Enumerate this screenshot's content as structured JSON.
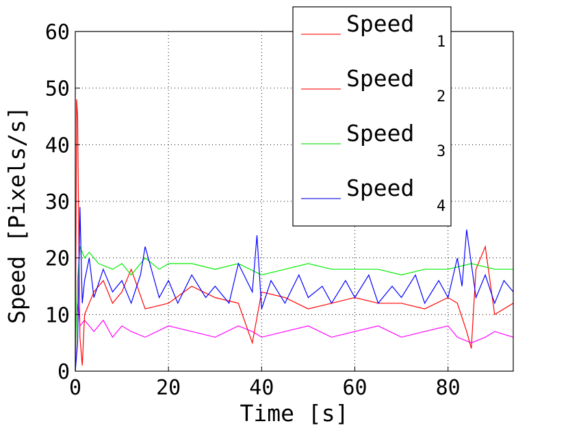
{
  "chart_data": {
    "type": "line",
    "title": "",
    "xlabel": "Time [s]",
    "ylabel": "Speed [Pixels/s]",
    "xlim": [
      0,
      94
    ],
    "ylim": [
      0,
      60
    ],
    "xticks": [
      0,
      20,
      40,
      60,
      80
    ],
    "yticks": [
      0,
      10,
      20,
      30,
      40,
      50,
      60
    ],
    "grid": true,
    "legend_position": "top-right",
    "series": [
      {
        "name": "Speed",
        "subscript": "1",
        "legend_color": "#ff2020",
        "color": "#ff00ff",
        "x": [
          0,
          0.3,
          0.6,
          1,
          2,
          4,
          6,
          8,
          10,
          12,
          15,
          20,
          25,
          30,
          35,
          38,
          40,
          45,
          50,
          55,
          60,
          65,
          70,
          75,
          80,
          82,
          85,
          88,
          90,
          94
        ],
        "y": [
          0,
          10,
          12,
          8,
          9,
          7,
          9,
          6,
          8,
          7,
          6,
          8,
          7,
          6,
          8,
          7,
          6,
          7,
          8,
          6,
          7,
          8,
          6,
          7,
          8,
          6,
          5,
          6,
          7,
          6
        ]
      },
      {
        "name": "Speed",
        "subscript": "2",
        "legend_color": "#ff2020",
        "color": "#ff0000",
        "x": [
          0,
          0.3,
          0.5,
          0.8,
          1,
          1.5,
          2,
          4,
          6,
          8,
          10,
          12,
          15,
          20,
          25,
          30,
          35,
          38,
          40,
          45,
          50,
          55,
          60,
          65,
          70,
          75,
          80,
          82,
          84,
          85,
          86,
          88,
          90,
          94
        ],
        "y": [
          0,
          48,
          45,
          20,
          6,
          1,
          10,
          14,
          16,
          12,
          14,
          18,
          11,
          12,
          15,
          13,
          12,
          5,
          14,
          13,
          11,
          12,
          13,
          12,
          12,
          11,
          13,
          12,
          7,
          4,
          18,
          22,
          10,
          12
        ]
      },
      {
        "name": "Speed",
        "subscript": "3",
        "legend_color": "#20e020",
        "color": "#00ee00",
        "x": [
          0,
          0.5,
          1,
          2,
          3,
          5,
          8,
          10,
          12,
          15,
          18,
          20,
          25,
          30,
          35,
          40,
          45,
          50,
          55,
          60,
          65,
          70,
          75,
          80,
          85,
          90,
          94
        ],
        "y": [
          2,
          16,
          22,
          20,
          21,
          19,
          18,
          19,
          17,
          20,
          18,
          19,
          19,
          18,
          19,
          17,
          18,
          19,
          18,
          18,
          18,
          17,
          18,
          18,
          19,
          18,
          18
        ]
      },
      {
        "name": "Speed",
        "subscript": "4",
        "legend_color": "#2020e0",
        "color": "#0000ff",
        "x": [
          0,
          0.5,
          1,
          1.5,
          2,
          3,
          4,
          6,
          8,
          10,
          12,
          14,
          15,
          18,
          20,
          22,
          25,
          28,
          30,
          33,
          35,
          38,
          39,
          40,
          42,
          45,
          48,
          50,
          53,
          55,
          58,
          60,
          63,
          65,
          68,
          70,
          73,
          75,
          78,
          80,
          82,
          83,
          84,
          86,
          88,
          90,
          92,
          94
        ],
        "y": [
          0,
          5,
          29,
          12,
          16,
          20,
          13,
          18,
          14,
          16,
          12,
          17,
          22,
          13,
          16,
          12,
          17,
          13,
          15,
          12,
          19,
          14,
          24,
          11,
          16,
          12,
          17,
          13,
          15,
          12,
          16,
          13,
          17,
          12,
          15,
          13,
          17,
          12,
          16,
          13,
          20,
          15,
          25,
          13,
          17,
          12,
          16,
          14
        ]
      }
    ]
  }
}
